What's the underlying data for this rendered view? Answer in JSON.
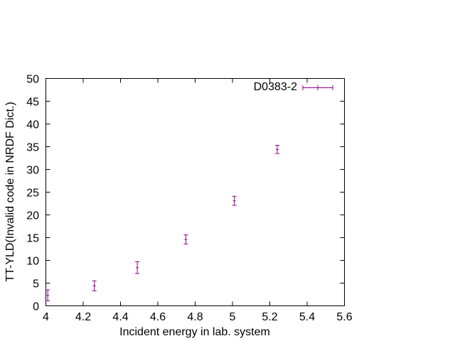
{
  "chart_data": {
    "type": "scatter",
    "xlabel": "Incident energy in lab. system",
    "ylabel": "TT-YLD(Invalid code in NRDF Dict.)",
    "xlim": [
      4.0,
      5.6
    ],
    "ylim": [
      0,
      50
    ],
    "x_ticks": [
      "4",
      "4.2",
      "4.4",
      "4.6",
      "4.8",
      "5",
      "5.2",
      "5.4",
      "5.6"
    ],
    "y_ticks": [
      "0",
      "5",
      "10",
      "15",
      "20",
      "25",
      "30",
      "35",
      "40",
      "45",
      "50"
    ],
    "grid": false,
    "legend_position": "top-right",
    "series": [
      {
        "name": "D0383-2",
        "color": "#8b008b",
        "points": [
          {
            "x": 4.01,
            "y": 2.3,
            "err": 1.2
          },
          {
            "x": 4.26,
            "y": 4.4,
            "err": 1.1
          },
          {
            "x": 4.49,
            "y": 8.4,
            "err": 1.3
          },
          {
            "x": 4.75,
            "y": 14.6,
            "err": 1.0
          },
          {
            "x": 5.01,
            "y": 23.1,
            "err": 1.0
          },
          {
            "x": 5.24,
            "y": 34.4,
            "err": 0.9
          }
        ]
      }
    ]
  }
}
